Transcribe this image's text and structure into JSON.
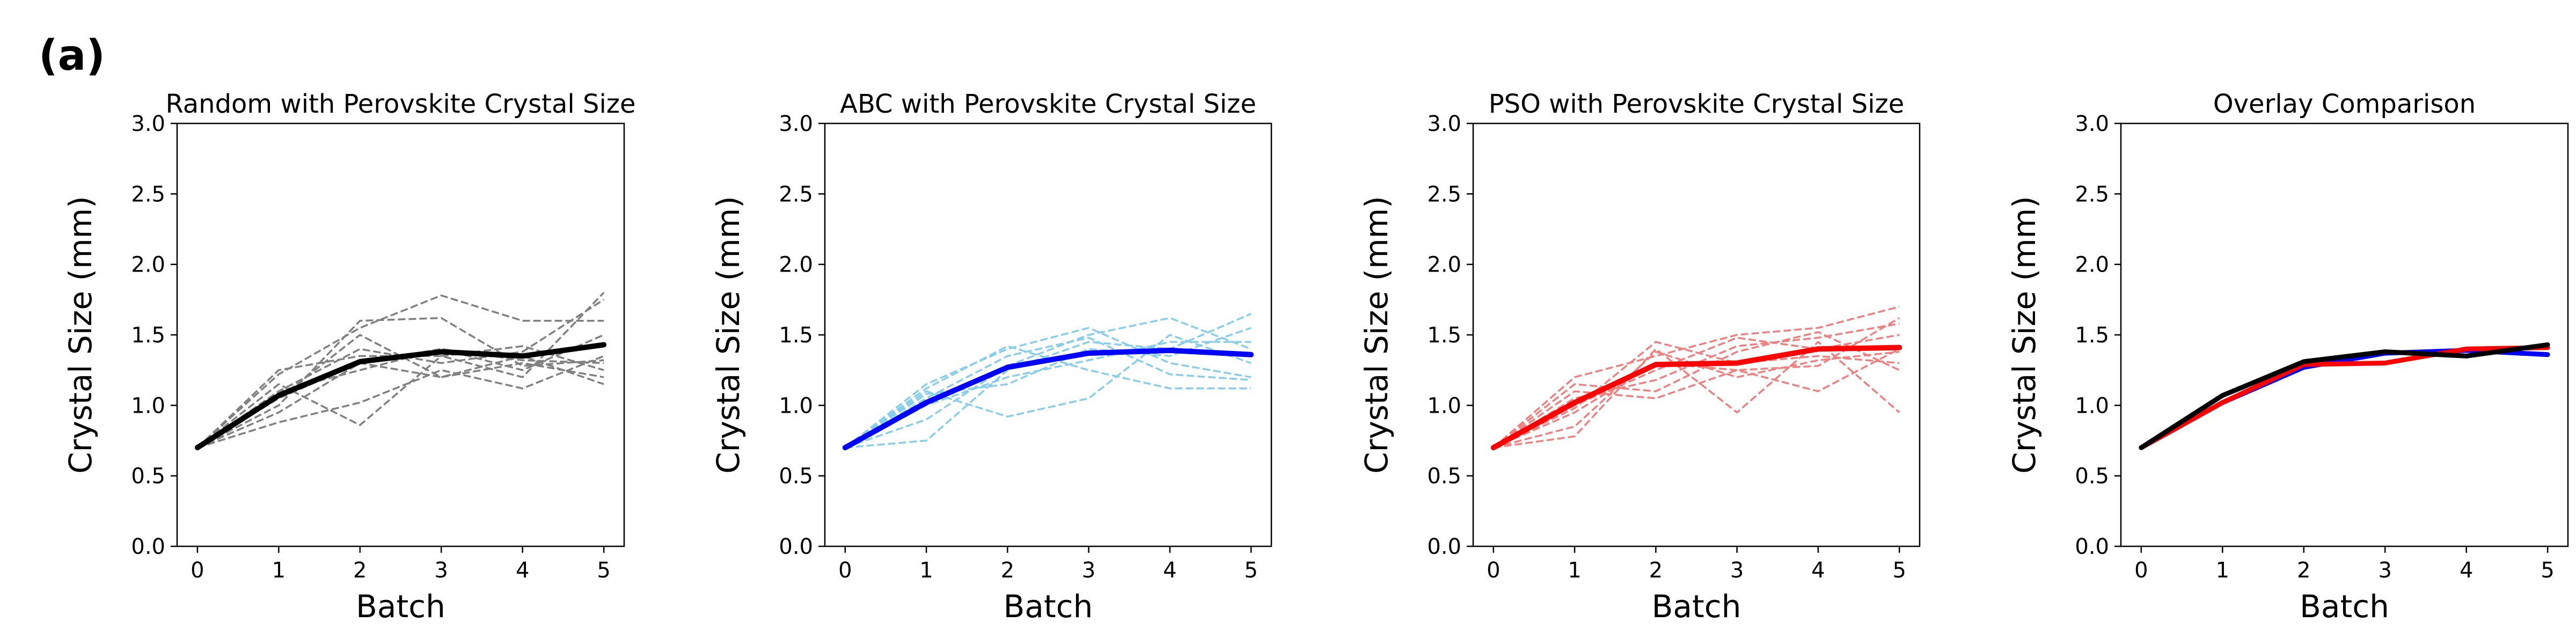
{
  "panel_label": "(a)",
  "colors": {
    "random": "#000000",
    "random_runs": "#808080",
    "abc": "#0000ff",
    "abc_runs": "#87ceeb",
    "pso": "#ff0000",
    "pso_runs": "#f08080"
  },
  "chart_data": [
    {
      "type": "line",
      "title": "Random with Perovskite Crystal Size",
      "xlabel": "Batch",
      "ylabel": "Crystal Size (mm)",
      "x": [
        0,
        1,
        2,
        3,
        4,
        5
      ],
      "xticks": [
        "0",
        "1",
        "2",
        "3",
        "4",
        "5"
      ],
      "yticks": [
        "0.0",
        "0.5",
        "1.0",
        "1.5",
        "2.0",
        "2.5",
        "3.0"
      ],
      "ylim": [
        0,
        3
      ],
      "xlim": [
        -0.25,
        5.25
      ],
      "grid": false,
      "runs_color": "#808080",
      "mean_color": "#000000",
      "runs": [
        [
          0.7,
          1.05,
          1.5,
          1.2,
          1.3,
          1.2
        ],
        [
          0.7,
          1.22,
          1.55,
          1.78,
          1.6,
          1.6
        ],
        [
          0.7,
          1.1,
          1.4,
          1.3,
          1.38,
          1.75
        ],
        [
          0.7,
          0.88,
          1.02,
          1.25,
          1.12,
          1.35
        ],
        [
          0.7,
          1.1,
          1.25,
          1.4,
          1.32,
          1.3
        ],
        [
          0.7,
          1.05,
          1.3,
          1.2,
          1.35,
          1.15
        ],
        [
          0.7,
          1.0,
          1.6,
          1.62,
          1.28,
          1.32
        ],
        [
          0.7,
          1.15,
          0.86,
          1.35,
          1.42,
          1.25
        ],
        [
          0.7,
          0.95,
          1.3,
          1.4,
          1.25,
          1.5
        ],
        [
          0.7,
          1.25,
          1.35,
          1.35,
          1.2,
          1.8
        ]
      ],
      "mean": [
        0.7,
        1.07,
        1.31,
        1.38,
        1.35,
        1.43
      ]
    },
    {
      "type": "line",
      "title": "ABC with Perovskite Crystal Size",
      "xlabel": "Batch",
      "ylabel": "Crystal Size (mm)",
      "x": [
        0,
        1,
        2,
        3,
        4,
        5
      ],
      "xticks": [
        "0",
        "1",
        "2",
        "3",
        "4",
        "5"
      ],
      "yticks": [
        "0.0",
        "0.5",
        "1.0",
        "1.5",
        "2.0",
        "2.5",
        "3.0"
      ],
      "ylim": [
        0,
        3
      ],
      "xlim": [
        -0.25,
        5.25
      ],
      "grid": false,
      "runs_color": "#87ceeb",
      "mean_color": "#0000ff",
      "runs": [
        [
          0.7,
          0.75,
          1.25,
          1.45,
          1.4,
          1.65
        ],
        [
          0.7,
          1.15,
          1.4,
          1.55,
          1.3,
          1.2
        ],
        [
          0.7,
          1.0,
          1.2,
          1.32,
          1.45,
          1.45
        ],
        [
          0.7,
          1.1,
          0.92,
          1.05,
          1.5,
          1.3
        ],
        [
          0.7,
          1.05,
          1.35,
          1.48,
          1.22,
          1.18
        ],
        [
          0.7,
          0.9,
          1.28,
          1.5,
          1.62,
          1.4
        ],
        [
          0.7,
          1.12,
          1.42,
          1.25,
          1.12,
          1.12
        ],
        [
          0.7,
          1.08,
          1.15,
          1.4,
          1.35,
          1.55
        ]
      ],
      "mean": [
        0.7,
        1.02,
        1.27,
        1.37,
        1.39,
        1.36
      ]
    },
    {
      "type": "line",
      "title": "PSO with Perovskite Crystal Size",
      "xlabel": "Batch",
      "ylabel": "Crystal Size (mm)",
      "x": [
        0,
        1,
        2,
        3,
        4,
        5
      ],
      "xticks": [
        "0",
        "1",
        "2",
        "3",
        "4",
        "5"
      ],
      "yticks": [
        "0.0",
        "0.5",
        "1.0",
        "1.5",
        "2.0",
        "2.5",
        "3.0"
      ],
      "ylim": [
        0,
        3
      ],
      "xlim": [
        -0.25,
        5.25
      ],
      "grid": false,
      "runs_color": "#f08080",
      "mean_color": "#ff0000",
      "runs": [
        [
          0.7,
          0.78,
          1.4,
          0.95,
          1.45,
          0.95
        ],
        [
          0.7,
          1.2,
          1.35,
          1.5,
          1.55,
          1.7
        ],
        [
          0.7,
          1.1,
          1.05,
          1.25,
          1.28,
          1.62
        ],
        [
          0.7,
          0.98,
          1.45,
          1.3,
          1.35,
          1.3
        ],
        [
          0.7,
          1.05,
          1.18,
          1.42,
          1.48,
          1.58
        ],
        [
          0.7,
          0.95,
          1.3,
          1.25,
          1.1,
          1.4
        ],
        [
          0.7,
          1.15,
          1.1,
          1.38,
          1.52,
          1.25
        ],
        [
          0.7,
          1.0,
          1.25,
          1.48,
          1.4,
          1.5
        ],
        [
          0.7,
          0.85,
          1.38,
          1.2,
          1.32,
          1.38
        ]
      ],
      "mean": [
        0.7,
        1.02,
        1.29,
        1.3,
        1.4,
        1.41
      ]
    },
    {
      "type": "line",
      "title": "Overlay Comparison",
      "xlabel": "Batch",
      "ylabel": "Crystal Size (mm)",
      "x": [
        0,
        1,
        2,
        3,
        4,
        5
      ],
      "xticks": [
        "0",
        "1",
        "2",
        "3",
        "4",
        "5"
      ],
      "yticks": [
        "0.0",
        "0.5",
        "1.0",
        "1.5",
        "2.0",
        "2.5",
        "3.0"
      ],
      "ylim": [
        0,
        3
      ],
      "xlim": [
        -0.25,
        5.25
      ],
      "grid": false,
      "overlay": [
        {
          "color": "#0000ff",
          "values": [
            0.7,
            1.02,
            1.27,
            1.37,
            1.39,
            1.36
          ]
        },
        {
          "color": "#ff0000",
          "values": [
            0.7,
            1.02,
            1.29,
            1.3,
            1.4,
            1.41
          ]
        },
        {
          "color": "#000000",
          "values": [
            0.7,
            1.07,
            1.31,
            1.38,
            1.35,
            1.43
          ]
        }
      ]
    }
  ]
}
